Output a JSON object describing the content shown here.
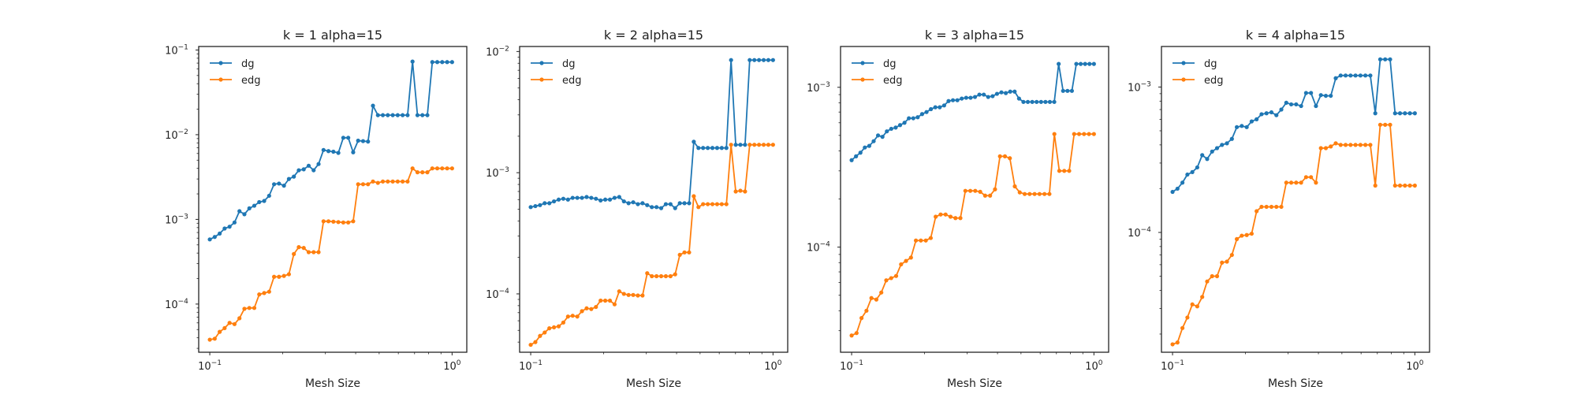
{
  "colors": {
    "dg": "#1f77b4",
    "edg": "#ff7f0e",
    "axes": "#222222"
  },
  "chart_data": [
    {
      "type": "line",
      "title": "k = 1 alpha=15",
      "xlabel": "Mesh Size",
      "ylabel": "",
      "xscale": "log",
      "yscale": "log",
      "xlim": [
        0.09,
        1.15
      ],
      "ylim": [
        2.7e-05,
        0.11
      ],
      "xticks": [
        {
          "value": 0.1,
          "base": "10",
          "exp": "−1"
        },
        {
          "value": 1,
          "base": "10",
          "exp": "0"
        }
      ],
      "yticks": [
        {
          "value": 0.0001,
          "base": "10",
          "exp": "−4"
        },
        {
          "value": 0.001,
          "base": "10",
          "exp": "−3"
        },
        {
          "value": 0.01,
          "base": "10",
          "exp": "−2"
        },
        {
          "value": 0.1,
          "base": "10",
          "exp": "−1"
        }
      ],
      "grid": false,
      "legend": "top-left",
      "series": [
        {
          "name": "dg",
          "color": "#1f77b4",
          "values": [
            0.00058,
            0.00062,
            0.00068,
            0.00078,
            0.00082,
            0.00092,
            0.00125,
            0.00115,
            0.00135,
            0.00145,
            0.0016,
            0.00165,
            0.0019,
            0.0026,
            0.00265,
            0.0025,
            0.003,
            0.0032,
            0.0038,
            0.0039,
            0.0043,
            0.0038,
            0.0045,
            0.0066,
            0.0064,
            0.0063,
            0.0061,
            0.0092,
            0.0092,
            0.0062,
            0.0085,
            0.0084,
            0.0083,
            0.022,
            0.017,
            0.017,
            0.017,
            0.017,
            0.017,
            0.017,
            0.017,
            0.073,
            0.017,
            0.017,
            0.017,
            0.072,
            0.072,
            0.072,
            0.072,
            0.072
          ]
        },
        {
          "name": "edg",
          "color": "#ff7f0e",
          "values": [
            3.8e-05,
            3.9e-05,
            4.7e-05,
            5.2e-05,
            6e-05,
            5.8e-05,
            6.8e-05,
            8.8e-05,
            9e-05,
            9e-05,
            0.00013,
            0.000135,
            0.00014,
            0.00021,
            0.00021,
            0.000215,
            0.000225,
            0.00039,
            0.00047,
            0.00046,
            0.00041,
            0.00041,
            0.00041,
            0.00095,
            0.00095,
            0.00094,
            0.00093,
            0.00092,
            0.00092,
            0.00095,
            0.0026,
            0.0026,
            0.0026,
            0.0028,
            0.0027,
            0.0028,
            0.0028,
            0.0028,
            0.0028,
            0.0028,
            0.0028,
            0.004,
            0.0036,
            0.0036,
            0.0036,
            0.004,
            0.004,
            0.004,
            0.004,
            0.004
          ]
        }
      ]
    },
    {
      "type": "line",
      "title": "k = 2 alpha=15",
      "xlabel": "Mesh Size",
      "ylabel": "",
      "xscale": "log",
      "yscale": "log",
      "xlim": [
        0.09,
        1.15
      ],
      "ylim": [
        3.3e-05,
        0.011
      ],
      "xticks": [
        {
          "value": 0.1,
          "base": "10",
          "exp": "−1"
        },
        {
          "value": 1,
          "base": "10",
          "exp": "0"
        }
      ],
      "yticks": [
        {
          "value": 0.0001,
          "base": "10",
          "exp": "−4"
        },
        {
          "value": 0.001,
          "base": "10",
          "exp": "−3"
        },
        {
          "value": 0.01,
          "base": "10",
          "exp": "−2"
        }
      ],
      "grid": false,
      "legend": "top-left",
      "series": [
        {
          "name": "dg",
          "color": "#1f77b4",
          "values": [
            0.00052,
            0.00053,
            0.00054,
            0.00056,
            0.00056,
            0.00058,
            0.0006,
            0.00061,
            0.0006,
            0.00062,
            0.00062,
            0.00062,
            0.00063,
            0.00062,
            0.00061,
            0.00059,
            0.0006,
            0.0006,
            0.00062,
            0.00063,
            0.00058,
            0.00056,
            0.00057,
            0.00055,
            0.00056,
            0.00054,
            0.00052,
            0.00052,
            0.00051,
            0.00055,
            0.00055,
            0.00051,
            0.00056,
            0.00056,
            0.00056,
            0.0018,
            0.0016,
            0.0016,
            0.0016,
            0.0016,
            0.0016,
            0.0016,
            0.0016,
            0.0085,
            0.0017,
            0.0017,
            0.0017,
            0.0085,
            0.0085,
            0.0085,
            0.0085,
            0.0085,
            0.0085
          ]
        },
        {
          "name": "edg",
          "color": "#ff7f0e",
          "values": [
            3.8e-05,
            4e-05,
            4.5e-05,
            4.8e-05,
            5.2e-05,
            5.3e-05,
            5.4e-05,
            5.8e-05,
            6.5e-05,
            6.6e-05,
            6.5e-05,
            7.2e-05,
            7.6e-05,
            7.5e-05,
            7.8e-05,
            8.8e-05,
            8.8e-05,
            8.8e-05,
            8.2e-05,
            0.000105,
            0.0001,
            9.8e-05,
            9.8e-05,
            9.7e-05,
            9.7e-05,
            0.000148,
            0.00014,
            0.00014,
            0.00014,
            0.00014,
            0.00014,
            0.000145,
            0.00021,
            0.00022,
            0.00022,
            0.00064,
            0.00052,
            0.00055,
            0.00055,
            0.00055,
            0.00055,
            0.00055,
            0.00055,
            0.0017,
            0.0007,
            0.00071,
            0.0007,
            0.0017,
            0.0017,
            0.0017,
            0.0017,
            0.0017,
            0.0017
          ]
        }
      ]
    },
    {
      "type": "line",
      "title": "k = 3 alpha=15",
      "xlabel": "Mesh Size",
      "ylabel": "",
      "xscale": "log",
      "yscale": "log",
      "xlim": [
        0.09,
        1.15
      ],
      "ylim": [
        2.2e-05,
        0.0018
      ],
      "xticks": [
        {
          "value": 0.1,
          "base": "10",
          "exp": "−1"
        },
        {
          "value": 1,
          "base": "10",
          "exp": "0"
        }
      ],
      "yticks": [
        {
          "value": 0.0001,
          "base": "10",
          "exp": "−4"
        },
        {
          "value": 0.001,
          "base": "10",
          "exp": "−3"
        }
      ],
      "grid": false,
      "legend": "top-left",
      "series": [
        {
          "name": "dg",
          "color": "#1f77b4",
          "values": [
            0.00035,
            0.00037,
            0.00039,
            0.00042,
            0.00043,
            0.00046,
            0.0005,
            0.00049,
            0.00053,
            0.00055,
            0.00056,
            0.00058,
            0.0006,
            0.00064,
            0.00064,
            0.00065,
            0.00068,
            0.0007,
            0.00073,
            0.00075,
            0.00075,
            0.00077,
            0.00082,
            0.00083,
            0.00083,
            0.00085,
            0.00086,
            0.00086,
            0.00087,
            0.0009,
            0.0009,
            0.00087,
            0.00088,
            0.00091,
            0.00093,
            0.00092,
            0.00094,
            0.00094,
            0.00085,
            0.00081,
            0.00081,
            0.00081,
            0.00081,
            0.00081,
            0.00081,
            0.00081,
            0.00081,
            0.0014,
            0.00095,
            0.00095,
            0.00095,
            0.0014,
            0.0014,
            0.0014,
            0.0014,
            0.0014
          ]
        },
        {
          "name": "edg",
          "color": "#ff7f0e",
          "values": [
            2.8e-05,
            2.9e-05,
            3.6e-05,
            4e-05,
            4.8e-05,
            4.7e-05,
            5.2e-05,
            6.2e-05,
            6.4e-05,
            6.6e-05,
            7.8e-05,
            8.2e-05,
            8.6e-05,
            0.00011,
            0.00011,
            0.00011,
            0.000114,
            0.000155,
            0.00016,
            0.00016,
            0.000155,
            0.000152,
            0.000152,
            0.000225,
            0.000225,
            0.000225,
            0.000222,
            0.00021,
            0.00021,
            0.00023,
            0.00037,
            0.00037,
            0.00036,
            0.00024,
            0.00022,
            0.000215,
            0.000215,
            0.000215,
            0.000215,
            0.000215,
            0.000215,
            0.00051,
            0.0003,
            0.0003,
            0.0003,
            0.00051,
            0.00051,
            0.00051,
            0.00051,
            0.00051
          ]
        }
      ]
    },
    {
      "type": "line",
      "title": "k = 4 alpha=15",
      "xlabel": "Mesh Size",
      "ylabel": "",
      "xscale": "log",
      "yscale": "log",
      "xlim": [
        0.09,
        1.15
      ],
      "ylim": [
        1.5e-05,
        0.0019
      ],
      "xticks": [
        {
          "value": 0.1,
          "base": "10",
          "exp": "−1"
        },
        {
          "value": 1,
          "base": "10",
          "exp": "0"
        }
      ],
      "yticks": [
        {
          "value": 0.0001,
          "base": "10",
          "exp": "−4"
        },
        {
          "value": 0.001,
          "base": "10",
          "exp": "−3"
        }
      ],
      "grid": false,
      "legend": "top-left",
      "series": [
        {
          "name": "dg",
          "color": "#1f77b4",
          "values": [
            0.00019,
            0.0002,
            0.00022,
            0.00025,
            0.00026,
            0.00028,
            0.00034,
            0.00032,
            0.00036,
            0.00038,
            0.0004,
            0.00041,
            0.00044,
            0.00053,
            0.00054,
            0.00053,
            0.00058,
            0.0006,
            0.00065,
            0.00066,
            0.00067,
            0.00064,
            0.0007,
            0.00078,
            0.00076,
            0.00076,
            0.00074,
            0.00091,
            0.00091,
            0.00074,
            0.00088,
            0.00087,
            0.00087,
            0.00115,
            0.0012,
            0.0012,
            0.0012,
            0.0012,
            0.0012,
            0.0012,
            0.0012,
            0.00066,
            0.00155,
            0.00155,
            0.00155,
            0.00066,
            0.00066,
            0.00066,
            0.00066,
            0.00066
          ]
        },
        {
          "name": "edg",
          "color": "#ff7f0e",
          "values": [
            1.7e-05,
            1.75e-05,
            2.2e-05,
            2.6e-05,
            3.2e-05,
            3.1e-05,
            3.6e-05,
            4.6e-05,
            5e-05,
            5e-05,
            6.2e-05,
            6.3e-05,
            7e-05,
            9e-05,
            9.5e-05,
            9.6e-05,
            9.8e-05,
            0.00014,
            0.00015,
            0.00015,
            0.00015,
            0.00015,
            0.00015,
            0.00022,
            0.00022,
            0.00022,
            0.00022,
            0.00024,
            0.00024,
            0.00022,
            0.00038,
            0.00038,
            0.00039,
            0.00041,
            0.0004,
            0.0004,
            0.0004,
            0.0004,
            0.0004,
            0.0004,
            0.0004,
            0.00021,
            0.00055,
            0.00055,
            0.00055,
            0.00021,
            0.00021,
            0.00021,
            0.00021,
            0.00021
          ]
        }
      ]
    }
  ]
}
